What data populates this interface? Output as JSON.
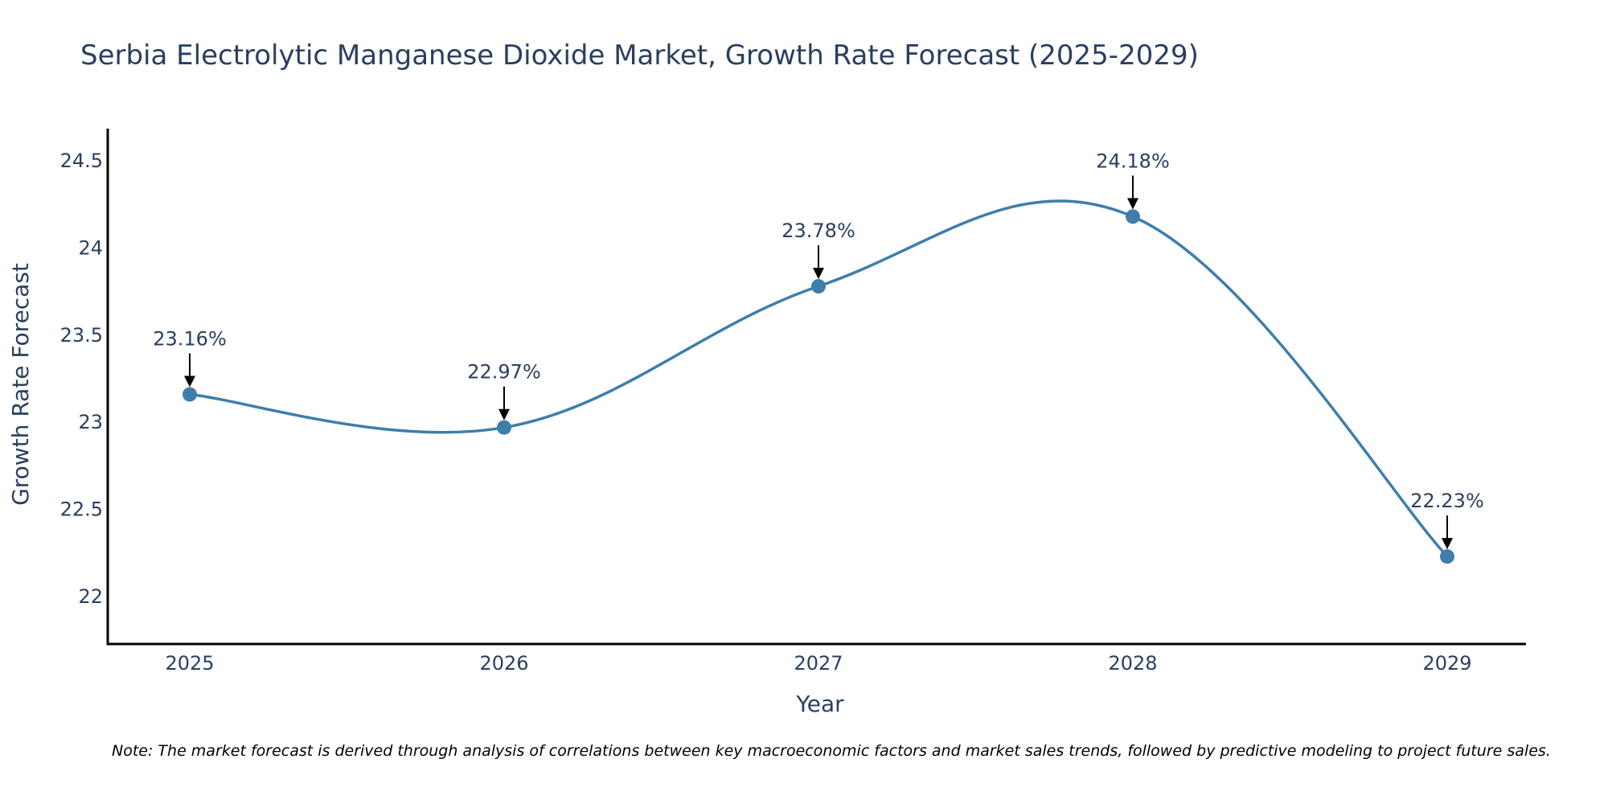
{
  "chart_data": {
    "type": "line",
    "title": "Serbia Electrolytic Manganese Dioxide Market, Growth Rate Forecast (2025-2029)",
    "xlabel": "Year",
    "ylabel": "Growth Rate Forecast",
    "categories": [
      "2025",
      "2026",
      "2027",
      "2028",
      "2029"
    ],
    "values": [
      23.16,
      22.97,
      23.78,
      24.18,
      22.23
    ],
    "data_labels": [
      "23.16%",
      "22.97%",
      "23.78%",
      "24.18%",
      "22.23%"
    ],
    "ylim": [
      21.72,
      24.67
    ],
    "yticks": [
      22,
      22.5,
      23,
      23.5,
      24,
      24.5
    ],
    "ytick_labels": [
      "22",
      "22.5",
      "23",
      "23.5",
      "24",
      "24.5"
    ],
    "line_color": "#3d7eab",
    "marker_color": "#3d7eab",
    "line_shape": "spline",
    "grid": false,
    "note": "Note: The market forecast is derived through analysis of correlations between key macroeconomic factors and market sales trends, followed by predictive modeling to project future sales."
  }
}
